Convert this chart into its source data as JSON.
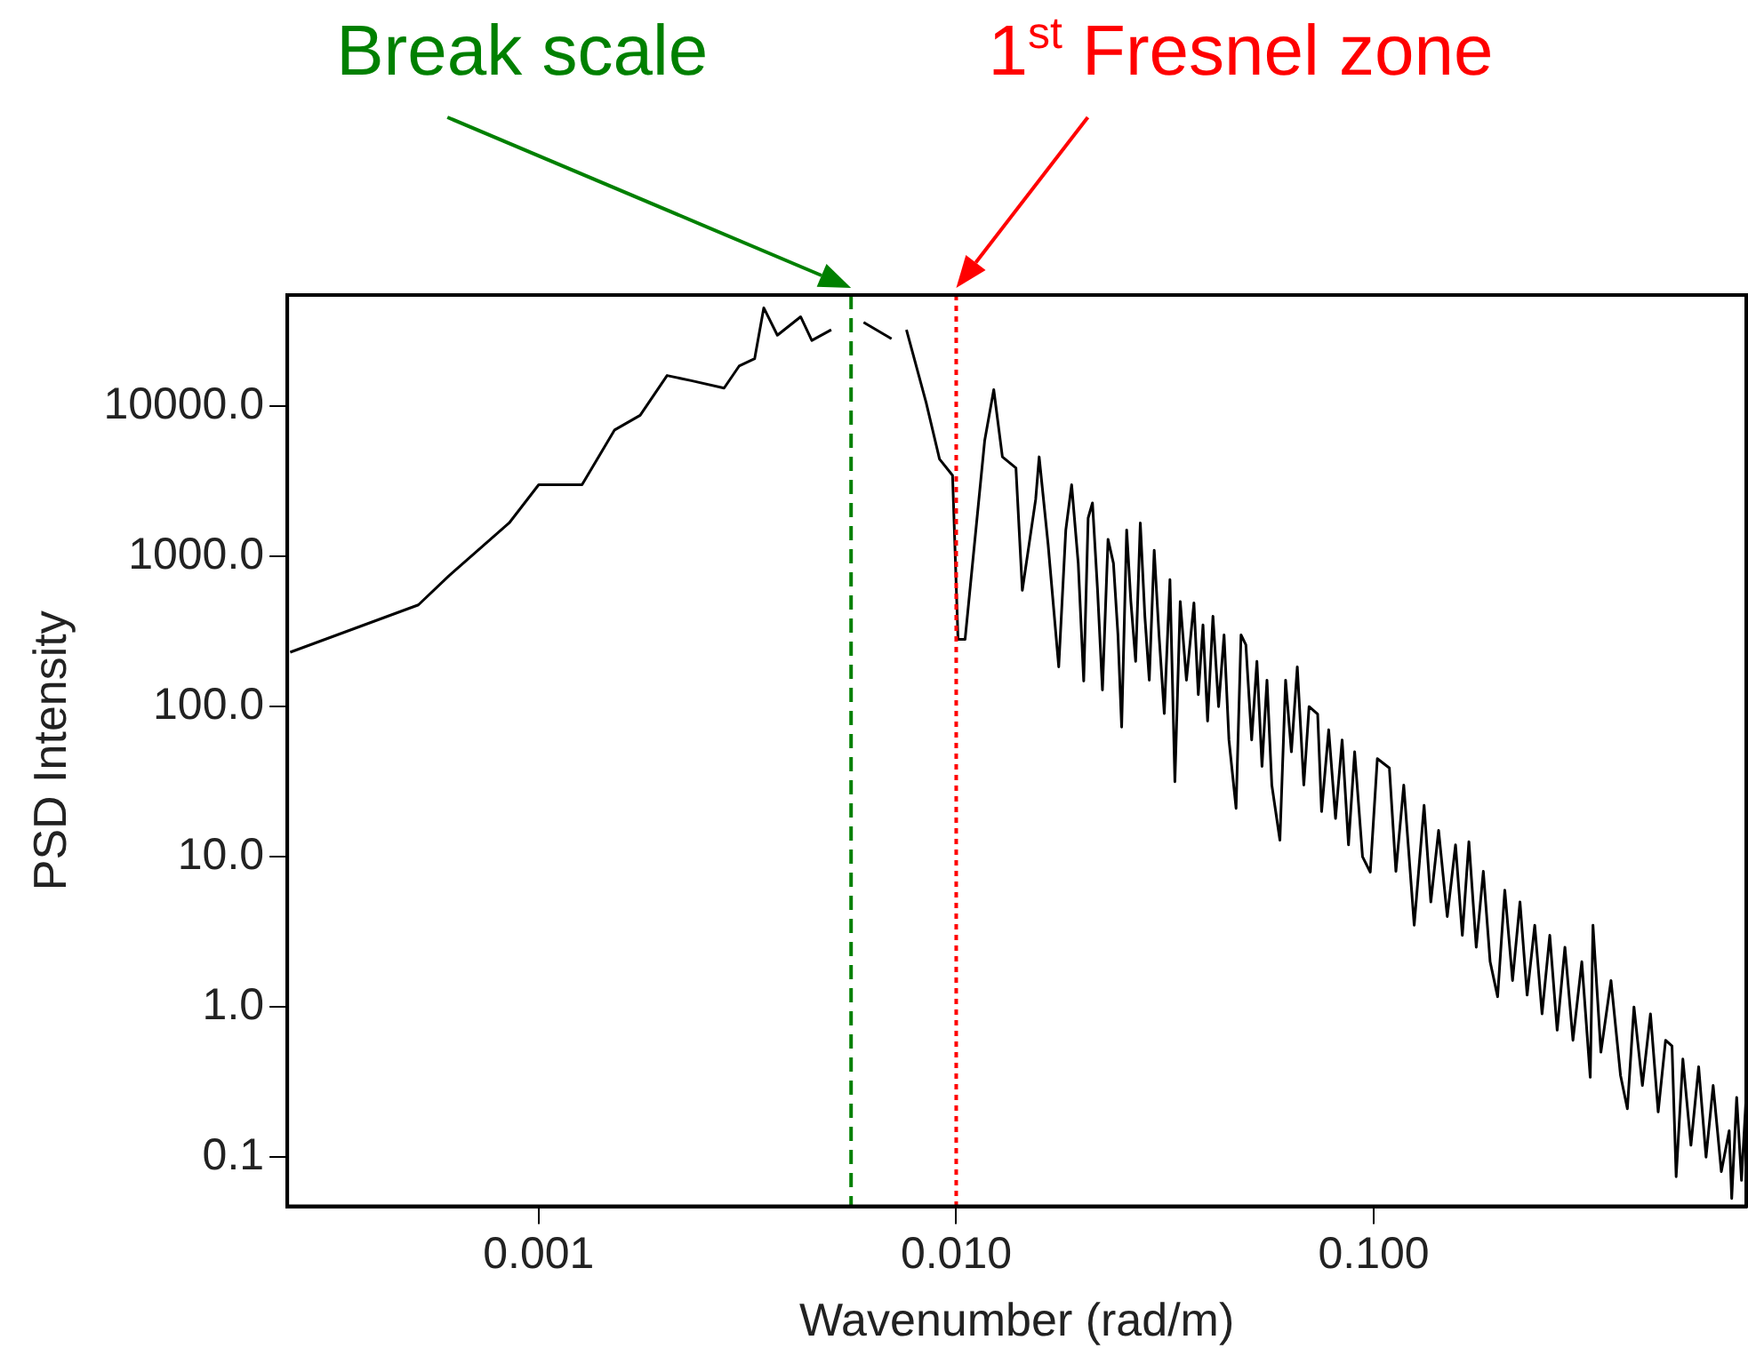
{
  "chart_data": {
    "type": "line",
    "xlabel": "Wavenumber (rad/m)",
    "ylabel": "PSD Intensity",
    "log": "xy",
    "grid": false,
    "legend": false,
    "marker": "none",
    "xlim": [
      0.00025,
      0.78
    ],
    "ylim": [
      0.047,
      55000
    ],
    "xticks": [
      {
        "value": 0.001,
        "label": "0.001"
      },
      {
        "value": 0.01,
        "label": "0.010"
      },
      {
        "value": 0.1,
        "label": "0.100"
      }
    ],
    "yticks": [
      {
        "value": 0.1,
        "label": "0.1"
      },
      {
        "value": 1,
        "label": "1.0"
      },
      {
        "value": 10,
        "label": "10.0"
      },
      {
        "value": 100,
        "label": "100.0"
      },
      {
        "value": 1000,
        "label": "1000.0"
      },
      {
        "value": 10000,
        "label": "10000.0"
      }
    ],
    "ref_lines": [
      {
        "axis": "x",
        "value": 0.0056,
        "label": "Break scale",
        "color": "#008000",
        "line_style": "dashed"
      },
      {
        "axis": "x",
        "value": 0.01,
        "label": "1$^{st}$ Fresnel zone",
        "color": "#ff0000",
        "line_style": "dotted"
      }
    ],
    "series": [
      {
        "color": "#000000",
        "x": [
          0.000254,
          0.000515,
          0.00061,
          0.00085,
          0.001,
          0.00127,
          0.00152,
          0.00175,
          0.00203,
          0.00232,
          0.00278,
          0.00302,
          0.00329,
          0.00346,
          0.00373,
          0.00424,
          0.00451,
          0.00502,
          0.0055,
          0.006,
          0.007,
          0.00749,
          0.0076,
          0.00847,
          0.00912,
          0.0098,
          0.0101,
          0.0105,
          0.0117,
          0.0123,
          0.0129,
          0.0139,
          0.0144,
          0.0155,
          0.0158,
          0.0166,
          0.0176,
          0.0183,
          0.0189,
          0.0196,
          0.0202,
          0.0207,
          0.0212,
          0.0218,
          0.0224,
          0.0231,
          0.0238,
          0.0244,
          0.0249,
          0.0256,
          0.0262,
          0.0269,
          0.0276,
          0.0283,
          0.029,
          0.0298,
          0.0306,
          0.0315,
          0.0325,
          0.0334,
          0.0344,
          0.0356,
          0.0371,
          0.038,
          0.039,
          0.04,
          0.0412,
          0.0425,
          0.0438,
          0.045,
          0.0468,
          0.0481,
          0.0494,
          0.051,
          0.0525,
          0.054,
          0.0555,
          0.057,
          0.0596,
          0.0615,
          0.0635,
          0.0656,
          0.068,
          0.07,
          0.0734,
          0.075,
          0.078,
          0.081,
          0.084,
          0.087,
          0.09,
          0.094,
          0.0981,
          0.102,
          0.109,
          0.113,
          0.118,
          0.125,
          0.132,
          0.137,
          0.143,
          0.15,
          0.157,
          0.163,
          0.169,
          0.176,
          0.183,
          0.19,
          0.198,
          0.206,
          0.215,
          0.224,
          0.233,
          0.243,
          0.253,
          0.264,
          0.275,
          0.287,
          0.3,
          0.315,
          0.33,
          0.335,
          0.35,
          0.37,
          0.39,
          0.405,
          0.42,
          0.44,
          0.46,
          0.48,
          0.5,
          0.518,
          0.53,
          0.55,
          0.575,
          0.6,
          0.625,
          0.65,
          0.68,
          0.71,
          0.72,
          0.74,
          0.76,
          0.78
        ],
        "values": [
          230,
          475,
          743,
          1670,
          3000,
          3000,
          6950,
          8700,
          16000,
          14800,
          13200,
          18500,
          20700,
          45200,
          29700,
          39400,
          27400,
          32300,
          null,
          36200,
          28100,
          null,
          32300,
          10600,
          4450,
          3460,
          280,
          280,
          5900,
          12900,
          4600,
          3880,
          594,
          2400,
          4600,
          1200,
          184,
          1500,
          3000,
          900,
          148,
          1800,
          2270,
          600,
          129,
          1300,
          900,
          300,
          73,
          1500,
          500,
          200,
          1670,
          400,
          150,
          1100,
          300,
          90,
          700,
          31.6,
          500,
          150,
          490,
          120,
          350,
          80,
          400,
          100,
          300,
          60,
          21,
          300,
          258,
          60,
          200,
          40,
          150,
          30,
          12.9,
          150,
          50,
          184,
          30,
          100,
          89,
          20,
          70,
          18,
          60,
          12,
          50,
          10,
          7.9,
          45,
          39,
          8,
          30,
          3.5,
          22,
          5,
          15,
          4,
          12,
          3,
          12.6,
          2.5,
          8,
          2,
          1.17,
          6,
          1.5,
          5,
          1.2,
          3.5,
          0.9,
          3,
          0.7,
          2.5,
          0.6,
          2,
          0.34,
          3.5,
          0.5,
          1.5,
          0.35,
          0.21,
          1.0,
          0.3,
          0.9,
          0.2,
          0.6,
          0.55,
          0.074,
          0.45,
          0.12,
          0.4,
          0.1,
          0.3,
          0.08,
          0.15,
          0.053,
          0.25,
          0.07,
          0.26
        ]
      }
    ]
  }
}
